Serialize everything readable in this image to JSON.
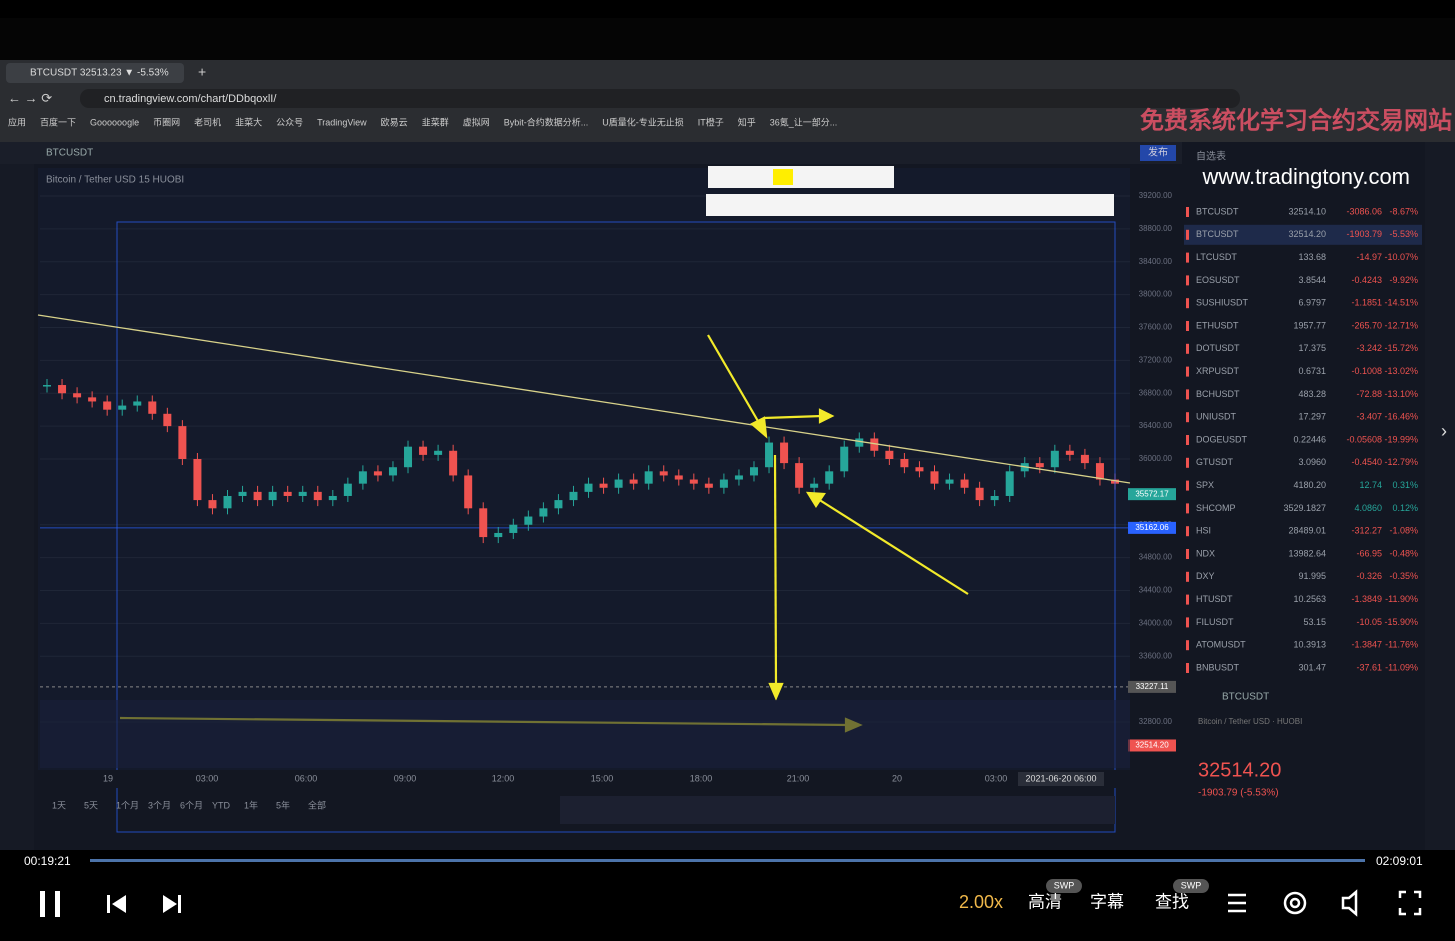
{
  "browser": {
    "tab_title": "BTCUSDT 32513.23 ▼ -5.53%",
    "url": "cn.tradingview.com/chart/DDbqoxlI/",
    "bookmarks": [
      "应用",
      "百度一下",
      "Goooooogle",
      "币圈网",
      "老司机",
      "韭菜大",
      "公众号",
      "TradingView",
      "欧易云",
      "韭菜群",
      "虚拟网",
      "Bybit-合约数据分析...",
      "U盾量化-专业无止损",
      "IT橙子",
      "知乎",
      "36氪_让一部分..."
    ]
  },
  "overlay": {
    "watermark": "免费系统化学习合约交易网站",
    "site": "www.tradingtony.com"
  },
  "chart": {
    "symbol": "BTCUSDT",
    "legend": "Bitcoin / Tether USD  15  HUOBI",
    "publish": "发布",
    "ylim": [
      39200,
      32800
    ],
    "yticks": [
      {
        "value": 39200,
        "label": "39200.00"
      },
      {
        "value": 38800,
        "label": "38800.00"
      },
      {
        "value": 38400,
        "label": "38400.00"
      },
      {
        "value": 38000,
        "label": "38000.00"
      },
      {
        "value": 37600,
        "label": "37600.00"
      },
      {
        "value": 37200,
        "label": "37200.00"
      },
      {
        "value": 36800,
        "label": "36800.00"
      },
      {
        "value": 36400,
        "label": "36400.00"
      },
      {
        "value": 36000,
        "label": "36000.00"
      },
      {
        "value": 35200,
        "label": "35200.00"
      },
      {
        "value": 34800,
        "label": "34800.00"
      },
      {
        "value": 34400,
        "label": "34400.00"
      },
      {
        "value": 34000,
        "label": "34000.00"
      },
      {
        "value": 33600,
        "label": "33600.00"
      },
      {
        "value": 32800,
        "label": "32800.00"
      }
    ],
    "price_tags": [
      {
        "value": 35572.17,
        "label": "35572.17"
      },
      {
        "value": 35162.06,
        "label": "35162.06"
      },
      {
        "value": 33227.11,
        "label": "33227.11"
      },
      {
        "value": 32514.2,
        "label": "32514.20"
      }
    ],
    "xlabels": [
      "19",
      "03:00",
      "06:00",
      "09:00",
      "12:00",
      "15:00",
      "18:00",
      "21:00",
      "20",
      "03:00"
    ],
    "cursor_date": "2021-06-20  06:00",
    "closes": [
      36900,
      36800,
      36750,
      36700,
      36600,
      36650,
      36700,
      36550,
      36400,
      36000,
      35500,
      35400,
      35550,
      35600,
      35500,
      35600,
      35550,
      35600,
      35500,
      35550,
      35700,
      35850,
      35800,
      35900,
      36150,
      36050,
      36100,
      35800,
      35400,
      35050,
      35100,
      35200,
      35300,
      35400,
      35500,
      35600,
      35700,
      35650,
      35750,
      35700,
      35850,
      35800,
      35750,
      35700,
      35650,
      35750,
      35800,
      35900,
      36200,
      35950,
      35650,
      35700,
      35850,
      36150,
      36250,
      36100,
      36000,
      35900,
      35850,
      35700,
      35750,
      35650,
      35500,
      35550,
      35850,
      35950,
      35900,
      36100,
      36050,
      35950,
      35750,
      35700
    ],
    "ranges": [
      "1天",
      "5天",
      "1个月",
      "3个月",
      "6个月",
      "YTD",
      "1年",
      "5年",
      "全部"
    ]
  },
  "watchlist": {
    "title": "自选表",
    "rows": [
      [
        "BTCUSDT",
        "32514.10",
        "-3086.06",
        "-8.67%"
      ],
      [
        "BTCUSDT",
        "32514.20",
        "-1903.79",
        "-5.53%"
      ],
      [
        "LTCUSDT",
        "133.68",
        "-14.97",
        "-10.07%"
      ],
      [
        "EOSUSDT",
        "3.8544",
        "-0.4243",
        "-9.92%"
      ],
      [
        "SUSHIUSDT",
        "6.9797",
        "-1.1851",
        "-14.51%"
      ],
      [
        "ETHUSDT",
        "1957.77",
        "-265.70",
        "-12.71%"
      ],
      [
        "DOTUSDT",
        "17.375",
        "-3.242",
        "-15.72%"
      ],
      [
        "XRPUSDT",
        "0.6731",
        "-0.1008",
        "-13.02%"
      ],
      [
        "BCHUSDT",
        "483.28",
        "-72.88",
        "-13.10%"
      ],
      [
        "UNIUSDT",
        "17.297",
        "-3.407",
        "-16.46%"
      ],
      [
        "DOGEUSDT",
        "0.22446",
        "-0.05608",
        "-19.99%"
      ],
      [
        "GTUSDT",
        "3.0960",
        "-0.4540",
        "-12.79%"
      ],
      [
        "SPX",
        "4180.20",
        "12.74",
        "0.31%"
      ],
      [
        "SHCOMP",
        "3529.1827",
        "4.0860",
        "0.12%"
      ],
      [
        "HSI",
        "28489.01",
        "-312.27",
        "-1.08%"
      ],
      [
        "NDX",
        "13982.64",
        "-66.95",
        "-0.48%"
      ],
      [
        "DXY",
        "91.995",
        "-0.326",
        "-0.35%"
      ],
      [
        "HTUSDT",
        "10.2563",
        "-1.3849",
        "-11.90%"
      ],
      [
        "FILUSDT",
        "53.15",
        "-10.05",
        "-15.90%"
      ],
      [
        "ATOMUSDT",
        "10.3913",
        "-1.3847",
        "-11.76%"
      ],
      [
        "BNBUSDT",
        "301.47",
        "-37.61",
        "-11.09%"
      ]
    ],
    "detail_symbol": "BTCUSDT",
    "detail_name": "Bitcoin / Tether USD · HUOBI",
    "price": "32514.20",
    "change": "-1903.79 (-5.53%)"
  },
  "player": {
    "elapsed": "00:19:21",
    "total": "02:09:01",
    "speed": "2.00x",
    "quality": "高清",
    "subtitle": "字幕",
    "search": "查找",
    "badge": "SWP"
  }
}
